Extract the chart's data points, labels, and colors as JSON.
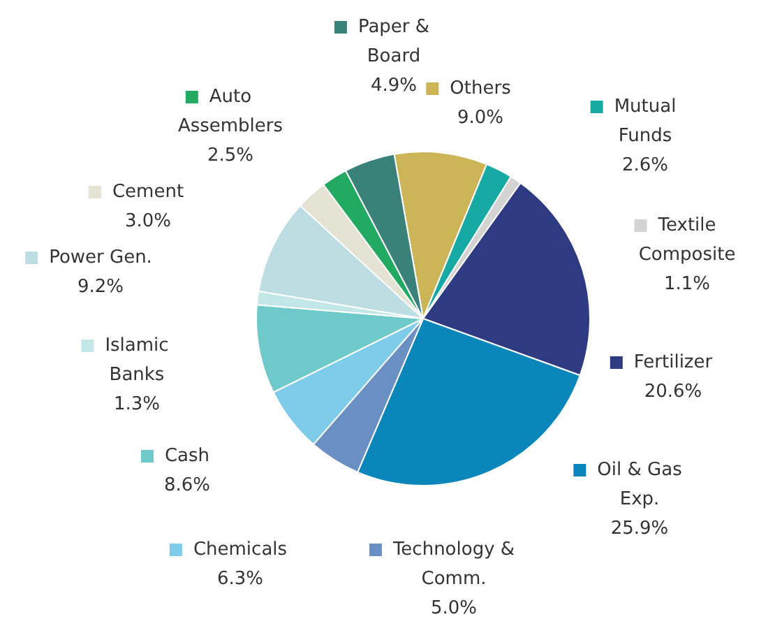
{
  "chart_data": {
    "type": "pie",
    "categories": [
      "Others",
      "Mutual Funds",
      "Textile Composite",
      "Fertilizer",
      "Oil & Gas Exp.",
      "Technology & Comm.",
      "Chemicals",
      "Cash",
      "Islamic Banks",
      "Power Gen.",
      "Cement",
      "Auto Assemblers",
      "Paper & Board"
    ],
    "values": [
      9.0,
      2.6,
      1.1,
      20.6,
      25.9,
      5.0,
      6.3,
      8.6,
      1.3,
      9.2,
      3.0,
      2.5,
      4.9
    ],
    "value_labels": [
      "9.0%",
      "2.6%",
      "1.1%",
      "20.6%",
      "25.9%",
      "5.0%",
      "6.3%",
      "8.6%",
      "1.3%",
      "9.2%",
      "3.0%",
      "2.5%",
      "4.9%"
    ],
    "colors": [
      "#cbb557",
      "#17a9a3",
      "#d3d3d3",
      "#2e3a82",
      "#0b86ba",
      "#6a8fc2",
      "#7fcbea",
      "#6ec9ca",
      "#c3e6e6",
      "#bcdde2",
      "#e3e2d3",
      "#22aa62",
      "#3a8279"
    ],
    "legend": "top left"
  }
}
